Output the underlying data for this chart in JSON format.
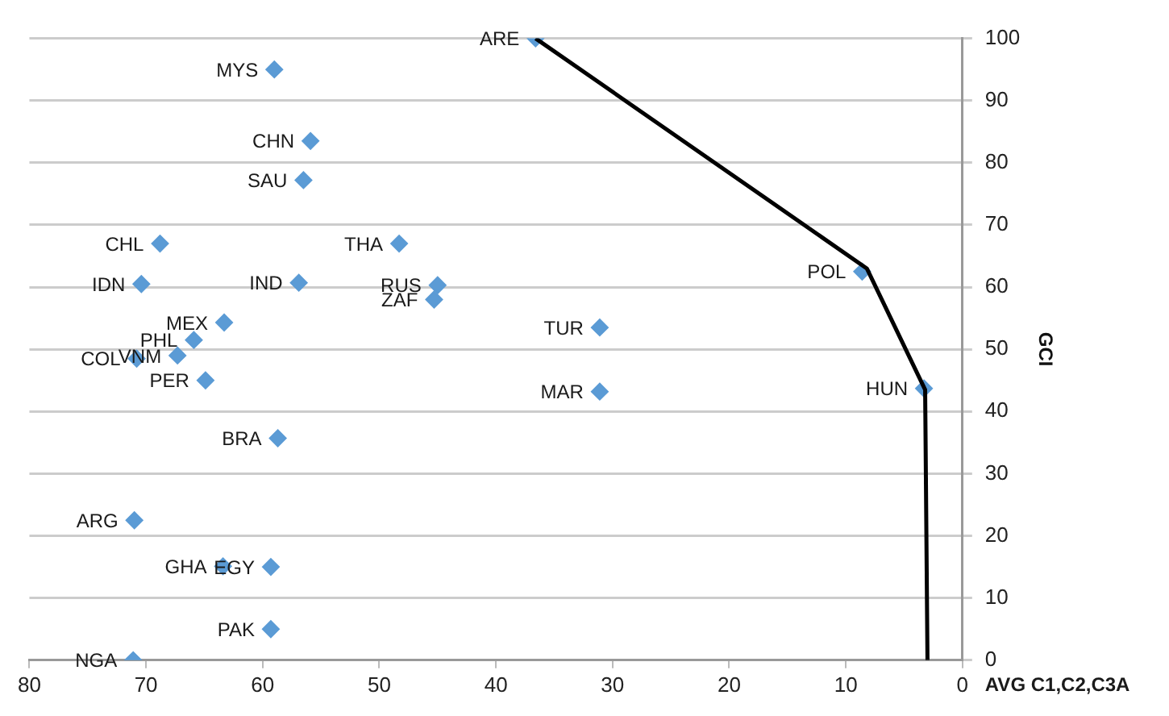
{
  "chart_data": {
    "type": "scatter",
    "xlabel": "AVG C1,C2,C3A",
    "ylabel": "GCI",
    "xlim": [
      80,
      0
    ],
    "xticks": [
      80,
      70,
      60,
      50,
      40,
      30,
      20,
      10,
      0
    ],
    "ylim": [
      0,
      100
    ],
    "yticks": [
      0,
      10,
      20,
      30,
      40,
      50,
      60,
      70,
      80,
      90,
      100
    ],
    "grid": "y",
    "marker": "diamond",
    "legend": false,
    "series": [
      {
        "color": "#5b9bd5",
        "x": [
          36.6,
          59.0,
          55.9,
          56.5,
          68.8,
          48.3,
          70.4,
          56.9,
          45.0,
          45.3,
          63.3,
          65.9,
          67.3,
          70.8,
          64.9,
          58.7,
          71.0,
          63.4,
          59.3,
          59.3,
          71.1,
          31.1,
          31.1,
          8.6,
          3.3
        ],
        "values": [
          100,
          95,
          83.5,
          77.2,
          67,
          67,
          60.5,
          60.7,
          60.3,
          58,
          54.3,
          51.5,
          49,
          48.5,
          45,
          35.7,
          22.5,
          15.1,
          15,
          5,
          0,
          53.5,
          43.2,
          62.5,
          43.7
        ]
      },
      {
        "type": "line",
        "color": "#000000",
        "marker": "none",
        "x": [
          36.6,
          8.2,
          3.2,
          3.0
        ],
        "values": [
          100,
          63,
          43.5,
          0
        ]
      }
    ],
    "annotations": [
      {
        "text": "ARE",
        "x": 36.6,
        "y": 100
      },
      {
        "text": "MYS",
        "x": 59.0,
        "y": 95
      },
      {
        "text": "CHN",
        "x": 55.9,
        "y": 83.5
      },
      {
        "text": "SAU",
        "x": 56.5,
        "y": 77.2
      },
      {
        "text": "CHL",
        "x": 68.8,
        "y": 67
      },
      {
        "text": "THA",
        "x": 48.3,
        "y": 67
      },
      {
        "text": "IDN",
        "x": 70.4,
        "y": 60.5
      },
      {
        "text": "IND",
        "x": 56.9,
        "y": 60.7
      },
      {
        "text": "RUS",
        "x": 45.0,
        "y": 60.3
      },
      {
        "text": "ZAF",
        "x": 45.3,
        "y": 58
      },
      {
        "text": "MEX",
        "x": 63.3,
        "y": 54.3
      },
      {
        "text": "PHL",
        "x": 65.9,
        "y": 51.5
      },
      {
        "text": "VNM",
        "x": 67.3,
        "y": 49
      },
      {
        "text": "COL",
        "x": 70.8,
        "y": 48.5
      },
      {
        "text": "PER",
        "x": 64.9,
        "y": 45
      },
      {
        "text": "BRA",
        "x": 58.7,
        "y": 35.7
      },
      {
        "text": "ARG",
        "x": 71.0,
        "y": 22.5
      },
      {
        "text": "GHA",
        "x": 63.4,
        "y": 15.1
      },
      {
        "text": "EGY",
        "x": 59.3,
        "y": 15
      },
      {
        "text": "PAK",
        "x": 59.3,
        "y": 5
      },
      {
        "text": "NGA",
        "x": 71.1,
        "y": 0
      },
      {
        "text": "TUR",
        "x": 31.1,
        "y": 53.5
      },
      {
        "text": "MAR",
        "x": 31.1,
        "y": 43.2
      },
      {
        "text": "POL",
        "x": 8.6,
        "y": 62.5
      },
      {
        "text": "HUN",
        "x": 3.3,
        "y": 43.7
      }
    ]
  }
}
